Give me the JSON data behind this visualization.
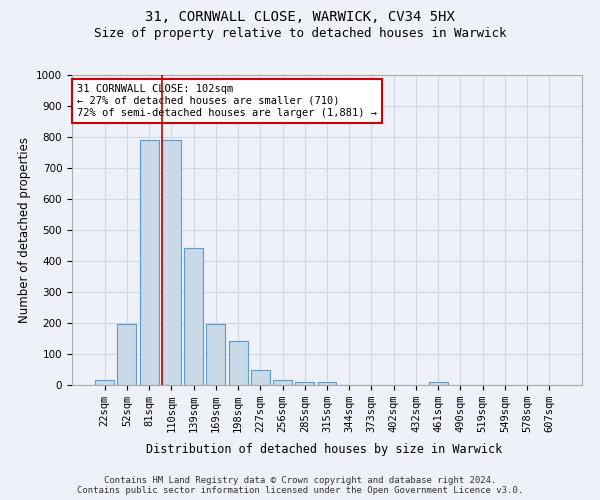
{
  "title1": "31, CORNWALL CLOSE, WARWICK, CV34 5HX",
  "title2": "Size of property relative to detached houses in Warwick",
  "xlabel": "Distribution of detached houses by size in Warwick",
  "ylabel": "Number of detached properties",
  "categories": [
    "22sqm",
    "52sqm",
    "81sqm",
    "110sqm",
    "139sqm",
    "169sqm",
    "198sqm",
    "227sqm",
    "256sqm",
    "285sqm",
    "315sqm",
    "344sqm",
    "373sqm",
    "402sqm",
    "432sqm",
    "461sqm",
    "490sqm",
    "519sqm",
    "549sqm",
    "578sqm",
    "607sqm"
  ],
  "values": [
    17,
    196,
    791,
    791,
    443,
    196,
    141,
    49,
    16,
    11,
    11,
    0,
    0,
    0,
    0,
    11,
    0,
    0,
    0,
    0,
    0
  ],
  "bar_color": "#c9d9e8",
  "bar_edge_color": "#5b9bd5",
  "grid_color": "#d0d8e4",
  "background_color": "#eef2f8",
  "vline_x": 2.575,
  "vline_color": "#cc0000",
  "annotation_text": "31 CORNWALL CLOSE: 102sqm\n← 27% of detached houses are smaller (710)\n72% of semi-detached houses are larger (1,881) →",
  "annotation_box_color": "#ffffff",
  "annotation_box_edge": "#cc0000",
  "ylim": [
    0,
    1000
  ],
  "yticks": [
    0,
    100,
    200,
    300,
    400,
    500,
    600,
    700,
    800,
    900,
    1000
  ],
  "footnote": "Contains HM Land Registry data © Crown copyright and database right 2024.\nContains public sector information licensed under the Open Government Licence v3.0.",
  "title1_fontsize": 10,
  "title2_fontsize": 9,
  "xlabel_fontsize": 8.5,
  "ylabel_fontsize": 8.5,
  "tick_fontsize": 7.5,
  "annot_fontsize": 7.5,
  "footnote_fontsize": 6.5
}
